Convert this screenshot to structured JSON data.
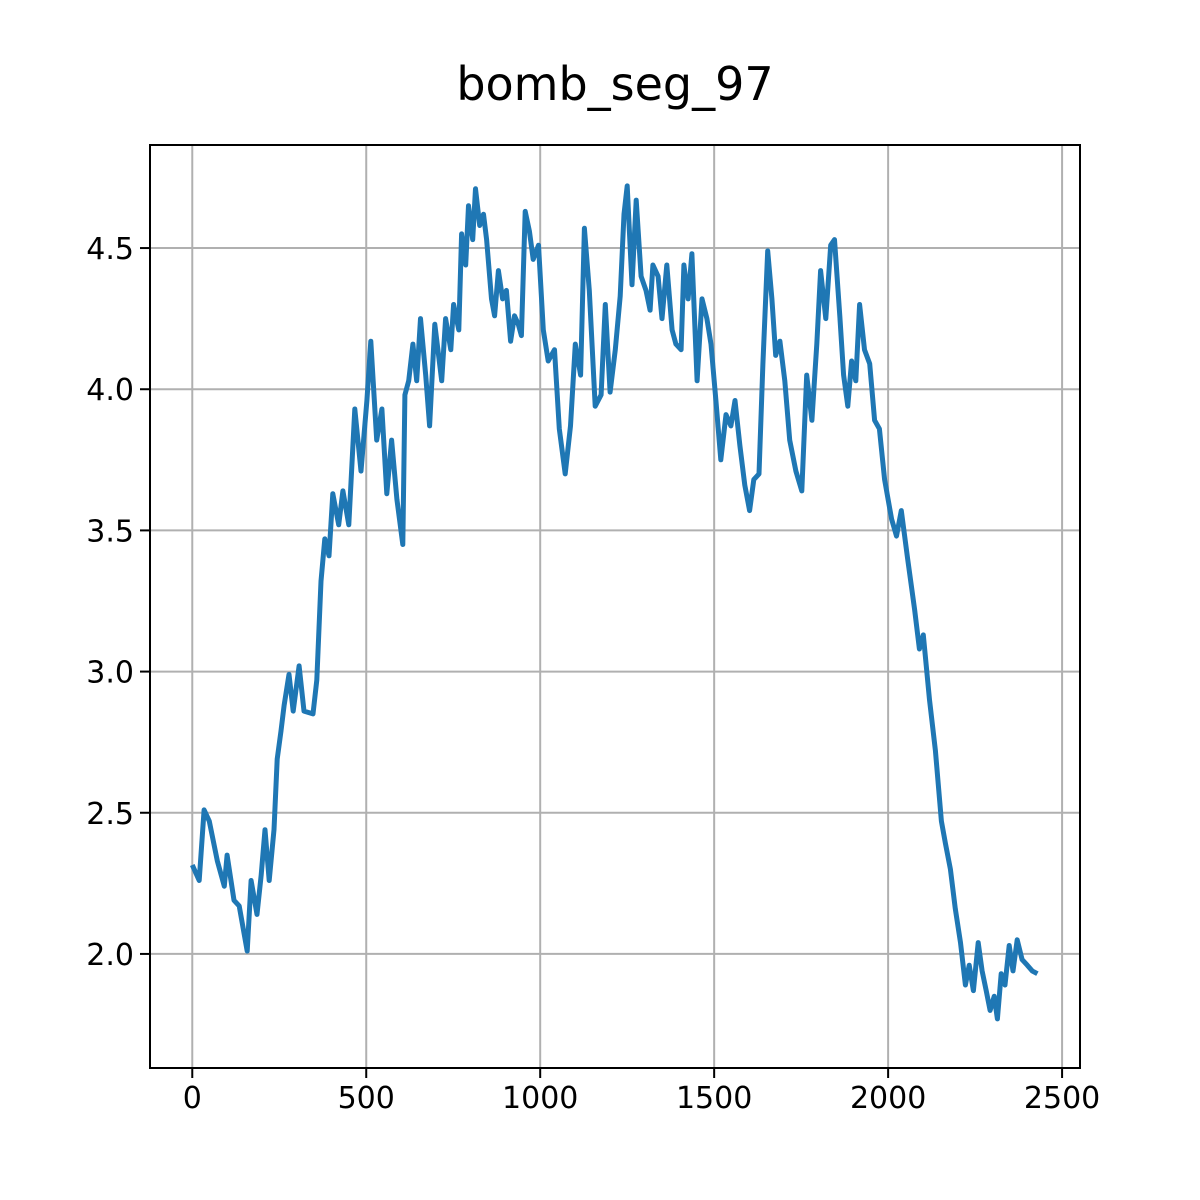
{
  "chart_data": {
    "type": "line",
    "title": "bomb_seg_97",
    "x": [
      0,
      20,
      34,
      49,
      72,
      92,
      100,
      120,
      135,
      158,
      169,
      186,
      198,
      209,
      221,
      235,
      244,
      255,
      264,
      278,
      290,
      307,
      321,
      347,
      358,
      370,
      381,
      393,
      404,
      421,
      433,
      450,
      467,
      485,
      502,
      513,
      530,
      545,
      559,
      573,
      588,
      605,
      611,
      622,
      634,
      645,
      656,
      671,
      682,
      697,
      717,
      728,
      743,
      751,
      766,
      774,
      786,
      794,
      806,
      814,
      826,
      837,
      846,
      860,
      869,
      880,
      892,
      903,
      915,
      926,
      937,
      946,
      957,
      969,
      980,
      995,
      1009,
      1023,
      1041,
      1055,
      1072,
      1087,
      1101,
      1116,
      1127,
      1141,
      1158,
      1175,
      1187,
      1201,
      1216,
      1230,
      1241,
      1250,
      1264,
      1276,
      1290,
      1304,
      1316,
      1324,
      1339,
      1350,
      1364,
      1379,
      1390,
      1405,
      1413,
      1425,
      1436,
      1451,
      1465,
      1479,
      1491,
      1505,
      1519,
      1534,
      1548,
      1560,
      1574,
      1588,
      1602,
      1614,
      1629,
      1640,
      1654,
      1666,
      1677,
      1689,
      1703,
      1717,
      1735,
      1752,
      1766,
      1781,
      1795,
      1806,
      1821,
      1835,
      1846,
      1861,
      1872,
      1884,
      1895,
      1907,
      1918,
      1932,
      1947,
      1961,
      1975,
      1990,
      2010,
      2024,
      2038,
      2056,
      2076,
      2090,
      2101,
      2119,
      2136,
      2153,
      2165,
      2179,
      2193,
      2208,
      2222,
      2233,
      2245,
      2259,
      2270,
      2282,
      2293,
      2305,
      2314,
      2325,
      2336,
      2348,
      2359,
      2371,
      2385,
      2400,
      2414,
      2429
    ],
    "series": [
      {
        "color": "#1f77b4",
        "values": [
          2.315,
          2.26,
          2.51,
          2.47,
          2.33,
          2.24,
          2.35,
          2.19,
          2.17,
          2.01,
          2.26,
          2.14,
          2.28,
          2.44,
          2.26,
          2.44,
          2.69,
          2.79,
          2.88,
          2.99,
          2.86,
          3.02,
          2.86,
          2.85,
          2.97,
          3.32,
          3.47,
          3.41,
          3.63,
          3.52,
          3.64,
          3.52,
          3.93,
          3.71,
          3.96,
          4.17,
          3.82,
          3.93,
          3.63,
          3.82,
          3.61,
          3.45,
          3.98,
          4.03,
          4.16,
          4.03,
          4.25,
          4.05,
          3.87,
          4.23,
          4.03,
          4.25,
          4.14,
          4.3,
          4.21,
          4.55,
          4.44,
          4.65,
          4.53,
          4.71,
          4.58,
          4.62,
          4.53,
          4.32,
          4.26,
          4.42,
          4.32,
          4.35,
          4.17,
          4.26,
          4.23,
          4.19,
          4.63,
          4.56,
          4.46,
          4.51,
          4.21,
          4.1,
          4.14,
          3.86,
          3.7,
          3.87,
          4.16,
          4.05,
          4.57,
          4.35,
          3.94,
          3.98,
          4.3,
          3.99,
          4.14,
          4.33,
          4.62,
          4.72,
          4.37,
          4.67,
          4.4,
          4.35,
          4.28,
          4.44,
          4.4,
          4.25,
          4.44,
          4.21,
          4.16,
          4.14,
          4.44,
          4.32,
          4.48,
          4.03,
          4.32,
          4.25,
          4.16,
          3.96,
          3.75,
          3.91,
          3.87,
          3.96,
          3.8,
          3.66,
          3.57,
          3.68,
          3.7,
          4.09,
          4.49,
          4.32,
          4.12,
          4.17,
          4.03,
          3.82,
          3.71,
          3.64,
          4.05,
          3.89,
          4.16,
          4.42,
          4.25,
          4.51,
          4.53,
          4.26,
          4.05,
          3.94,
          4.1,
          4.03,
          4.3,
          4.14,
          4.09,
          3.89,
          3.86,
          3.68,
          3.54,
          3.48,
          3.57,
          3.4,
          3.22,
          3.08,
          3.13,
          2.9,
          2.72,
          2.47,
          2.39,
          2.3,
          2.16,
          2.04,
          1.89,
          1.96,
          1.87,
          2.04,
          1.94,
          1.87,
          1.8,
          1.85,
          1.77,
          1.93,
          1.89,
          2.03,
          1.94,
          2.05,
          1.98,
          1.96,
          1.94,
          1.93
        ]
      }
    ],
    "xlim": [
      -121.5,
      2551.5
    ],
    "ylim": [
      1.596,
      4.865
    ],
    "xticks": [
      0,
      500,
      1000,
      1500,
      2000,
      2500
    ],
    "yticks": [
      {
        "value": 2,
        "label": "2.0"
      },
      2.5,
      {
        "value": 3,
        "label": "3.0"
      },
      3.5,
      {
        "value": 4,
        "label": "4.0"
      },
      4.5
    ],
    "grid": true
  }
}
